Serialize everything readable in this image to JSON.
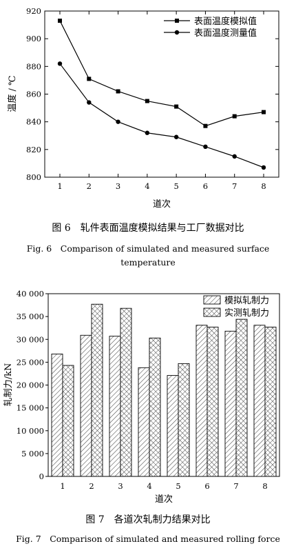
{
  "chart_data": [
    {
      "type": "line",
      "xlabel": "道次",
      "ylabel": "温度 / ℃",
      "ylim": [
        800,
        920
      ],
      "yticks": [
        800,
        820,
        840,
        860,
        880,
        900,
        920
      ],
      "xticks": [
        1,
        2,
        3,
        4,
        5,
        6,
        7,
        8
      ],
      "x": [
        1,
        2,
        3,
        4,
        5,
        6,
        7,
        8
      ],
      "legend_position": "top-right",
      "grid": false,
      "series": [
        {
          "name": "表面温度模拟值",
          "marker": "square",
          "values": [
            913,
            871,
            862,
            855,
            851,
            837,
            844,
            847
          ]
        },
        {
          "name": "表面温度测量值",
          "marker": "circle",
          "values": [
            882,
            854,
            840,
            832,
            829,
            822,
            815,
            807
          ]
        }
      ]
    },
    {
      "type": "bar",
      "xlabel": "道次",
      "ylabel": "轧制力/kN",
      "ylim": [
        0,
        40000
      ],
      "yticks": [
        0,
        5000,
        10000,
        15000,
        20000,
        25000,
        30000,
        35000,
        40000
      ],
      "ytick_labels": [
        "0",
        "5 000",
        "10 000",
        "15 000",
        "20 000",
        "25 000",
        "30 000",
        "35 000",
        "40 000"
      ],
      "categories": [
        "1",
        "2",
        "3",
        "4",
        "5",
        "6",
        "7",
        "8"
      ],
      "legend_position": "top-right",
      "grid": false,
      "series": [
        {
          "name": "模拟轧制力",
          "pattern": "diagonal-hatch",
          "values": [
            26800,
            30900,
            30700,
            23800,
            22100,
            33100,
            31800,
            33100
          ]
        },
        {
          "name": "实测轧制力",
          "pattern": "cross-hatch",
          "values": [
            24300,
            37700,
            36800,
            30300,
            24700,
            32700,
            34400,
            32700
          ]
        }
      ]
    }
  ],
  "captions": {
    "fig6_cn": "图 6　轧件表面温度模拟结果与工厂数据对比",
    "fig6_en_line1": "Fig. 6　Comparison of simulated and measured surface",
    "fig6_en_line2": "temperature",
    "fig7_cn": "图 7　各道次轧制力结果对比",
    "fig7_en": "Fig. 7　Comparison of simulated and measured rolling force"
  }
}
